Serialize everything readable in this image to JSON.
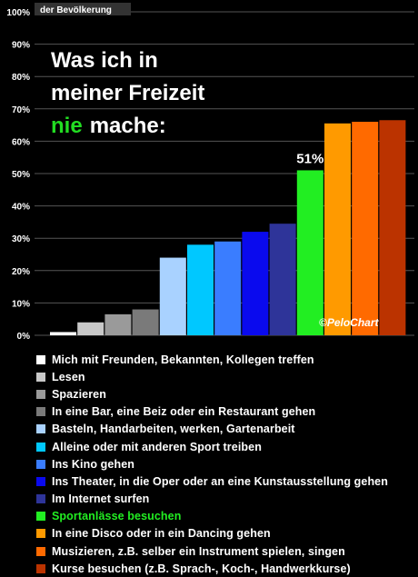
{
  "chart_data": {
    "type": "bar",
    "subtitle": "der Bevölkerung",
    "title_lines": [
      "Was ich in",
      "meiner Freizeit"
    ],
    "title_highlight": "nie",
    "title_rest": "mache:",
    "title_highlight_color": "#22dd22",
    "y_ticks": [
      "100%",
      "90%",
      "80%",
      "70%",
      "60%",
      "50%",
      "40%",
      "30%",
      "20%",
      "10%",
      "0%"
    ],
    "ylim": [
      0,
      100
    ],
    "grid": true,
    "annotation": {
      "text": "51%",
      "category_index": 9
    },
    "watermark": "©PeloChart",
    "categories": [
      "Mich mit Freunden, Bekannten, Kollegen treffen",
      "Lesen",
      "Spazieren",
      "In eine Bar, eine Beiz oder ein Restaurant gehen",
      "Basteln, Handarbeiten, werken, Gartenarbeit",
      "Alleine oder mit anderen Sport treiben",
      "Ins Kino gehen",
      "Ins Theater, in die Oper oder an eine Kunstausstellung gehen",
      "Im Internet surfen",
      "Sportanlässe besuchen",
      "In eine Disco oder in ein Dancing gehen",
      "Musizieren, z.B. selber ein Instrument spielen, singen",
      "Kurse besuchen (z.B. Sprach-, Koch-, Handwerkkurse)"
    ],
    "values": [
      1,
      4,
      6.5,
      8,
      24,
      28,
      29,
      32,
      34.5,
      51,
      65.5,
      66,
      66.5
    ],
    "colors": [
      "#ffffff",
      "#c8c8c8",
      "#9a9a9a",
      "#7a7a7a",
      "#a9d2ff",
      "#00c8ff",
      "#3a7dff",
      "#0a0aee",
      "#2e3499",
      "#22ee22",
      "#ff9a00",
      "#ff6a00",
      "#bb3300"
    ],
    "legend_text_colors": [
      "#ffffff",
      "#ffffff",
      "#ffffff",
      "#ffffff",
      "#ffffff",
      "#ffffff",
      "#ffffff",
      "#ffffff",
      "#ffffff",
      "#22ee22",
      "#ffffff",
      "#ffffff",
      "#ffffff"
    ]
  }
}
